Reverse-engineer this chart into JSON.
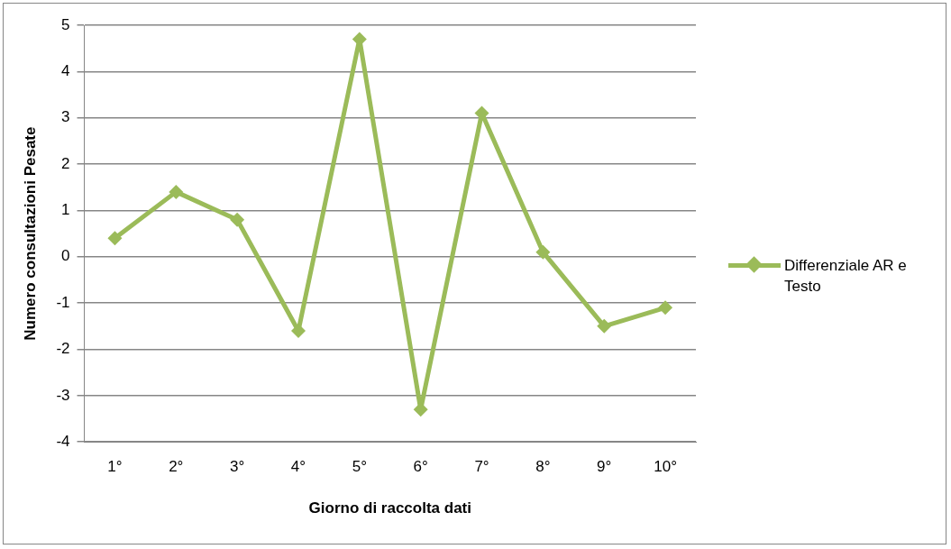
{
  "chart_data": {
    "type": "line",
    "xlabel": "Giorno di raccolta dati",
    "ylabel": "Numero consultazioni Pesate",
    "categories": [
      "1°",
      "2°",
      "3°",
      "4°",
      "5°",
      "6°",
      "7°",
      "8°",
      "9°",
      "10°"
    ],
    "series": [
      {
        "name": "Differenziale AR e Testo",
        "color": "#9bbb59",
        "values": [
          0.4,
          1.4,
          0.8,
          -1.6,
          4.7,
          -3.3,
          3.1,
          0.1,
          -1.5,
          -1.1
        ]
      }
    ],
    "ylim": [
      -4,
      5
    ],
    "yticks": [
      -4,
      -3,
      -2,
      -1,
      0,
      1,
      2,
      3,
      4,
      5
    ],
    "grid": "y",
    "legend": "right",
    "marker": "diamond",
    "line_style": "solid"
  }
}
